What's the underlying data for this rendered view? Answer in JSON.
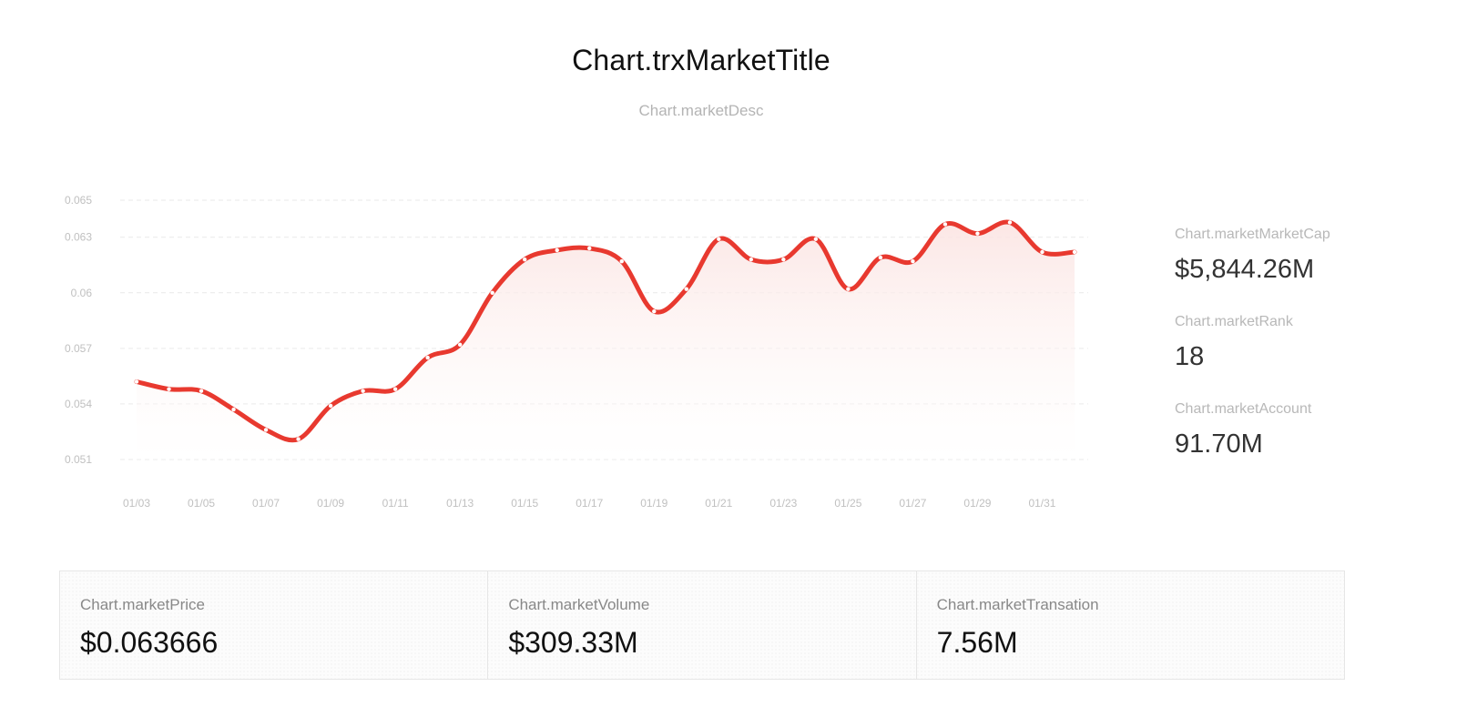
{
  "header": {
    "title": "Chart.trxMarketTitle",
    "subtitle": "Chart.marketDesc"
  },
  "side_stats": [
    {
      "label": "Chart.marketMarketCap",
      "value": "$5,844.26M"
    },
    {
      "label": "Chart.marketRank",
      "value": "18"
    },
    {
      "label": "Chart.marketAccount",
      "value": "91.70M"
    }
  ],
  "bottom_stats": [
    {
      "label": "Chart.marketPrice",
      "value": "$0.063666"
    },
    {
      "label": "Chart.marketVolume",
      "value": "$309.33M"
    },
    {
      "label": "Chart.marketTransation",
      "value": "7.56M"
    }
  ],
  "colors": {
    "line": "#e8392f",
    "area_top": "#fbe4e2",
    "grid": "#e9e9e9",
    "tick_text": "#c0c0c0"
  },
  "chart_data": {
    "type": "area",
    "title": "",
    "xlabel": "",
    "ylabel": "",
    "x": [
      "01/03",
      "01/04",
      "01/05",
      "01/06",
      "01/07",
      "01/08",
      "01/09",
      "01/10",
      "01/11",
      "01/12",
      "01/13",
      "01/14",
      "01/15",
      "01/16",
      "01/17",
      "01/18",
      "01/19",
      "01/20",
      "01/21",
      "01/22",
      "01/23",
      "01/24",
      "01/25",
      "01/26",
      "01/27",
      "01/28",
      "01/29",
      "01/30",
      "01/31",
      "02/01"
    ],
    "x_tick_labels": [
      "01/03",
      "01/05",
      "01/07",
      "01/09",
      "01/11",
      "01/13",
      "01/15",
      "01/17",
      "01/19",
      "01/21",
      "01/23",
      "01/25",
      "01/27",
      "01/29",
      "01/31"
    ],
    "y_ticks": [
      0.065,
      0.063,
      0.06,
      0.057,
      0.054,
      0.051
    ],
    "y_tick_labels": [
      "0.065",
      "0.063",
      "0.06",
      "0.057",
      "0.054",
      "0.051"
    ],
    "ylim": [
      0.051,
      0.065
    ],
    "grid": true,
    "series": [
      {
        "values": [
          0.0552,
          0.0548,
          0.0547,
          0.0537,
          0.0526,
          0.0521,
          0.0539,
          0.0547,
          0.0548,
          0.0565,
          0.0572,
          0.06,
          0.0618,
          0.0623,
          0.0624,
          0.0617,
          0.059,
          0.0602,
          0.0629,
          0.0618,
          0.0618,
          0.0629,
          0.0602,
          0.0619,
          0.0617,
          0.0637,
          0.0632,
          0.0638,
          0.0622,
          0.0622
        ]
      }
    ]
  }
}
